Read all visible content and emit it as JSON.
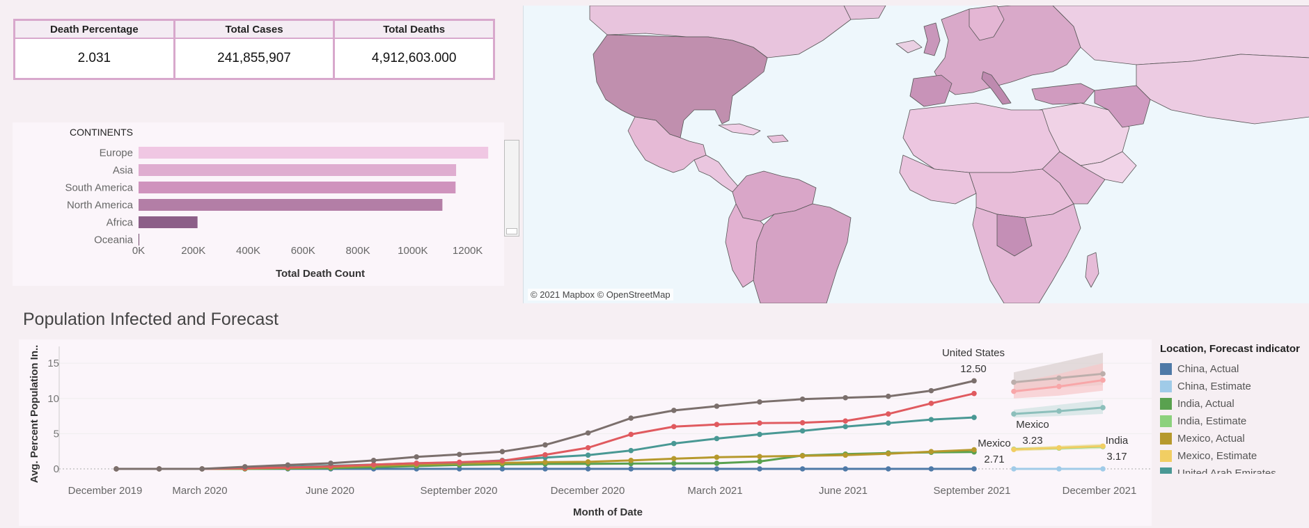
{
  "kpis": [
    {
      "label": "Death Percentage",
      "value": "2.031"
    },
    {
      "label": "Total Cases",
      "value": "241,855,907"
    },
    {
      "label": "Total Deaths",
      "value": "4,912,603.000"
    }
  ],
  "continents_chart": {
    "header": "CONTINENTS",
    "xlabel": "Total Death Count",
    "colors": {
      "Europe": "#f0c7e3",
      "Asia": "#dfadd0",
      "South America": "#cf93bd",
      "North America": "#b37ea6",
      "Africa": "#8c5f88",
      "Oceania": "#6e4469"
    }
  },
  "map": {
    "attribution": "© 2021 Mapbox © OpenStreetMap"
  },
  "forecast": {
    "title": "Population Infected and Forecast",
    "legend_title": "Location, Forecast indicator",
    "legend": [
      {
        "label": "China, Actual",
        "color": "#4e79a7"
      },
      {
        "label": "China, Estimate",
        "color": "#a0cbe8"
      },
      {
        "label": "India, Actual",
        "color": "#59a14f"
      },
      {
        "label": "India, Estimate",
        "color": "#8cd17d"
      },
      {
        "label": "Mexico, Actual",
        "color": "#b6992d"
      },
      {
        "label": "Mexico, Estimate",
        "color": "#f1ce63"
      },
      {
        "label": "United Arab Emirates",
        "color": "#499894"
      }
    ]
  },
  "chart_data": [
    {
      "type": "bar",
      "title": "",
      "xlabel": "Total Death Count",
      "ylabel": "CONTINENTS",
      "categories": [
        "Europe",
        "Asia",
        "South America",
        "North America",
        "Africa",
        "Oceania"
      ],
      "values": [
        1275000,
        1158000,
        1156000,
        1108000,
        215000,
        2000
      ],
      "xlim": [
        0,
        1300000
      ],
      "xticks": [
        "0K",
        "200K",
        "400K",
        "600K",
        "800K",
        "1000K",
        "1200K"
      ]
    },
    {
      "type": "line",
      "title": "Population Infected and Forecast",
      "xlabel": "Month of Date",
      "ylabel": "Avg. Percent Population In..",
      "ylim": [
        0,
        16
      ],
      "yticks": [
        "0",
        "5",
        "10",
        "15"
      ],
      "xticks": [
        "December 2019",
        "March 2020",
        "June 2020",
        "September 2020",
        "December 2020",
        "March 2021",
        "June 2021",
        "September 2021",
        "December 2021"
      ],
      "x_actual": [
        "2020-01",
        "2020-02",
        "2020-03",
        "2020-04",
        "2020-05",
        "2020-06",
        "2020-07",
        "2020-08",
        "2020-09",
        "2020-10",
        "2020-11",
        "2020-12",
        "2021-01",
        "2021-02",
        "2021-03",
        "2021-04",
        "2021-05",
        "2021-06",
        "2021-07",
        "2021-08",
        "2021-09"
      ],
      "x_forecast": [
        "2021-10",
        "2021-11",
        "2021-12"
      ],
      "series": [
        {
          "name": "United States",
          "color": "#7b6f6c",
          "kind": "actual",
          "values": [
            0,
            0,
            0,
            0.3,
            0.55,
            0.8,
            1.2,
            1.7,
            2.05,
            2.45,
            3.4,
            5.1,
            7.2,
            8.3,
            8.9,
            9.5,
            9.9,
            10.1,
            10.3,
            11.1,
            12.5
          ]
        },
        {
          "name": "United States",
          "color": "#bcaeab",
          "kind": "estimate",
          "values": [
            12.3,
            12.9,
            13.5
          ]
        },
        {
          "color": "#e05a5f",
          "kind": "actual",
          "values": [
            0,
            0,
            0,
            0.1,
            0.2,
            0.35,
            0.6,
            0.8,
            0.95,
            1.15,
            2.0,
            3.0,
            4.9,
            6.0,
            6.3,
            6.5,
            6.55,
            6.8,
            7.8,
            9.3,
            10.7
          ]
        },
        {
          "color": "#f8a6a8",
          "kind": "estimate",
          "values": [
            11.0,
            11.7,
            12.6
          ]
        },
        {
          "name": "United Arab Emirates",
          "color": "#499894",
          "kind": "actual",
          "values": [
            0,
            0,
            0,
            0.15,
            0.3,
            0.45,
            0.6,
            0.8,
            0.9,
            1.2,
            1.6,
            1.95,
            2.6,
            3.6,
            4.3,
            4.9,
            5.4,
            6.0,
            6.5,
            7.0,
            7.3
          ]
        },
        {
          "name": "United Arab Emirates",
          "color": "#8cbfbb",
          "kind": "estimate",
          "values": [
            7.8,
            8.2,
            8.7
          ]
        },
        {
          "name": "Mexico, Actual",
          "color": "#b6992d",
          "kind": "actual",
          "values": [
            0,
            0,
            0,
            0.05,
            0.15,
            0.25,
            0.45,
            0.6,
            0.75,
            0.85,
            0.95,
            1.0,
            1.2,
            1.45,
            1.65,
            1.75,
            1.85,
            1.95,
            2.15,
            2.45,
            2.71
          ]
        },
        {
          "name": "Mexico, Estimate",
          "color": "#f1ce63",
          "kind": "estimate",
          "values": [
            2.75,
            3.0,
            3.23
          ]
        },
        {
          "name": "India, Actual",
          "color": "#59a14f",
          "kind": "actual",
          "values": [
            0,
            0,
            0,
            0,
            0.05,
            0.1,
            0.25,
            0.4,
            0.55,
            0.65,
            0.7,
            0.72,
            0.75,
            0.78,
            0.8,
            1.05,
            1.9,
            2.1,
            2.25,
            2.35,
            2.4
          ]
        },
        {
          "name": "India, Estimate",
          "color": "#8cd17d",
          "kind": "estimate",
          "values": [
            2.8,
            2.95,
            3.17
          ]
        },
        {
          "name": "China, Actual",
          "color": "#4e79a7",
          "kind": "actual",
          "values": [
            0,
            0,
            0,
            0,
            0,
            0,
            0,
            0,
            0,
            0,
            0,
            0,
            0,
            0,
            0,
            0,
            0,
            0,
            0,
            0,
            0
          ]
        },
        {
          "name": "China, Estimate",
          "color": "#a0cbe8",
          "kind": "estimate",
          "values": [
            0,
            0,
            0
          ]
        }
      ],
      "annotations": [
        {
          "name": "United States",
          "value": "12.50"
        },
        {
          "name": "Mexico",
          "value": "2.71"
        },
        {
          "name": "Mexico",
          "value": "3.23"
        },
        {
          "name": "India",
          "value": "3.17"
        }
      ]
    }
  ]
}
